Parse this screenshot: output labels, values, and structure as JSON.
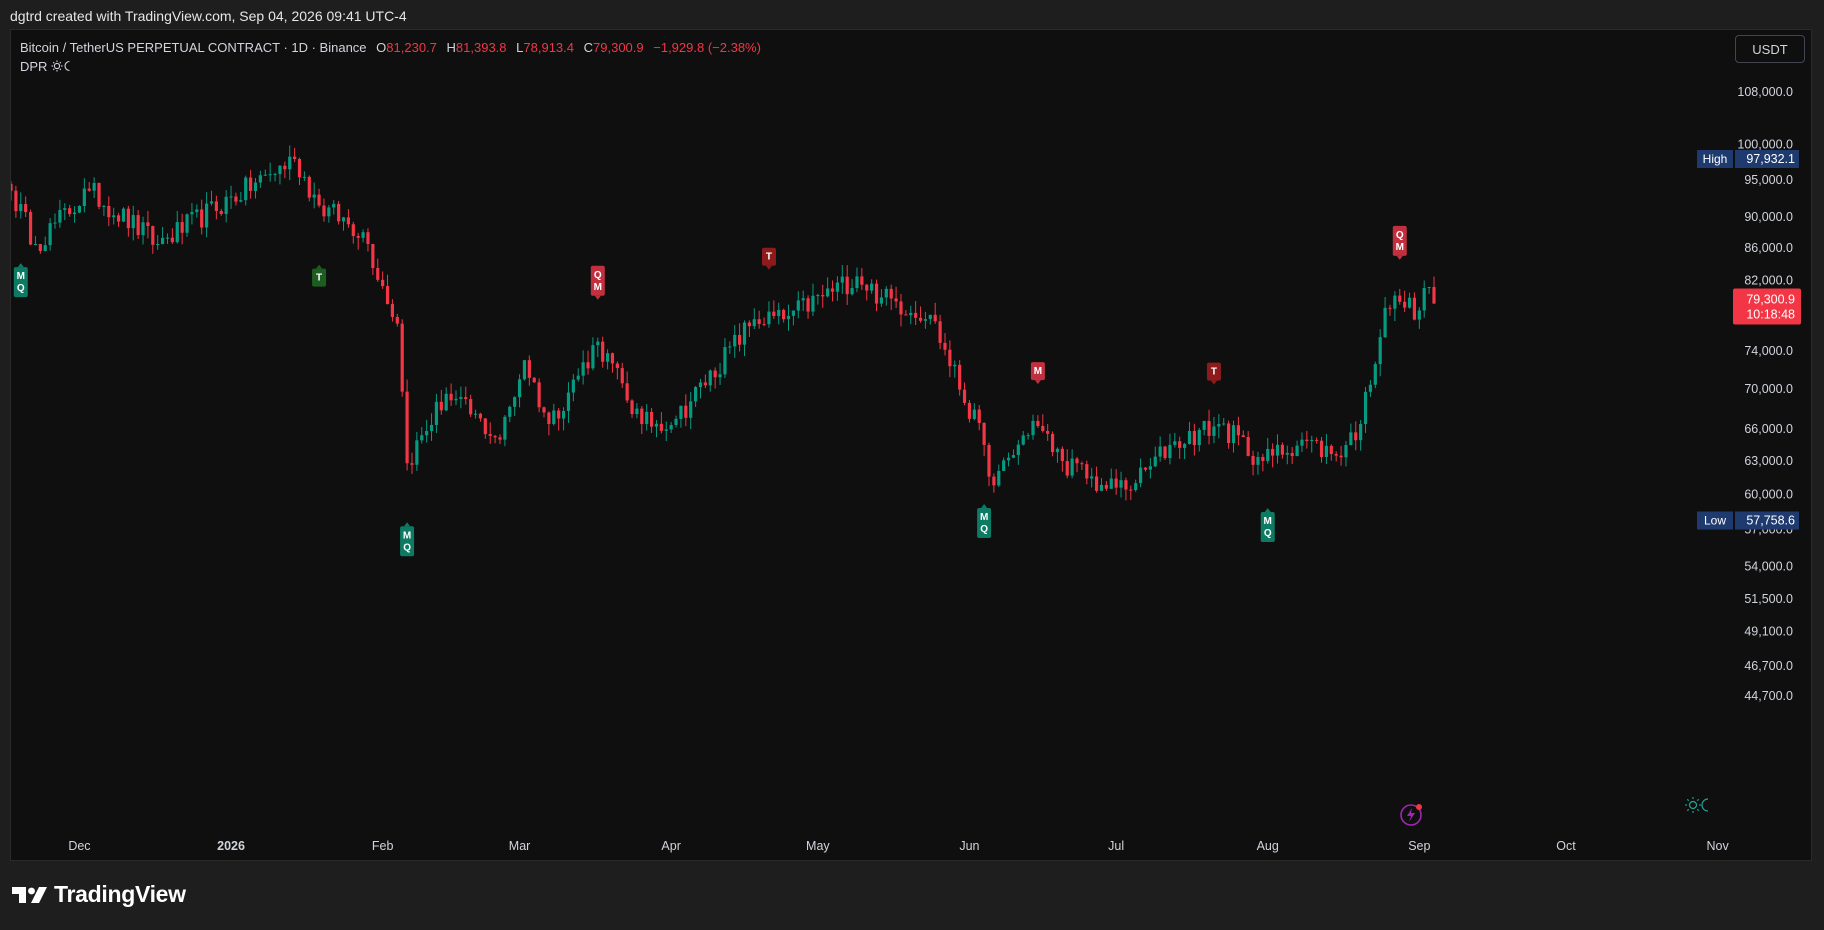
{
  "snapshot_header": "dgtrd created with TradingView.com, Sep 04, 2026 09:41 UTC-4",
  "legend": {
    "symbol": "Bitcoin / TetherUS PERPETUAL CONTRACT · 1D · Binance",
    "open_label": "O",
    "open": "81,230.7",
    "high_label": "H",
    "high": "81,393.8",
    "low_label": "L",
    "low": "78,913.4",
    "close_label": "C",
    "close": "79,300.9",
    "change": "−1,929.8 (−2.38%)"
  },
  "indicator": {
    "name": "DPR",
    "icon": "sun-moon-icon"
  },
  "currency_button": "USDT",
  "footer_brand": "TradingView",
  "colors": {
    "up": "#089981",
    "down": "#f23645",
    "background": "#0f0f0f",
    "axis_text": "#d1d4dc",
    "marker_up": "#0d7a63",
    "marker_down": "#c2303f",
    "marker_dark_green": "#1b5e20",
    "marker_dark_red": "#8e1b1b",
    "badge_blue": "#1e3a6e"
  },
  "price_axis": {
    "ticks": [
      "108,000.0",
      "100,000.0",
      "95,000.0",
      "90,000.0",
      "86,000.0",
      "82,000.0",
      "74,000.0",
      "70,000.0",
      "66,000.0",
      "63,000.0",
      "60,000.0",
      "57,000.0",
      "54,000.0",
      "51,500.0",
      "49,100.0",
      "46,700.0",
      "44,700.0"
    ],
    "high_label": "High",
    "high_value": "97,932.1",
    "low_label": "Low",
    "low_value": "57,758.6",
    "last_price": "79,300.9",
    "countdown": "10:18:48"
  },
  "time_axis": {
    "labels": [
      "Dec",
      "2026",
      "Feb",
      "Mar",
      "Apr",
      "May",
      "Jun",
      "Jul",
      "Aug",
      "Sep",
      "Oct",
      "Nov"
    ]
  },
  "chart_data": {
    "type": "candlestick",
    "symbol": "BTCUSDT.P",
    "interval": "1D",
    "y_scale": "log",
    "ylim": [
      44700,
      108000
    ],
    "xlim": [
      "2025-11-17",
      "2026-11-08"
    ],
    "first_candle_date": "2025-11-17",
    "key_prices": [
      [
        "2025-11-17",
        93500
      ],
      [
        "2025-11-22",
        86500
      ],
      [
        "2025-12-03",
        93500
      ],
      [
        "2025-12-17",
        86500
      ],
      [
        "2026-01-14",
        97932
      ],
      [
        "2026-01-19",
        91500
      ],
      [
        "2026-01-28",
        88000
      ],
      [
        "2026-02-04",
        77000
      ],
      [
        "2026-02-06",
        62800
      ],
      [
        "2026-02-14",
        69500
      ],
      [
        "2026-02-25",
        65000
      ],
      [
        "2026-03-02",
        73000
      ],
      [
        "2026-03-07",
        66500
      ],
      [
        "2026-03-17",
        75000
      ],
      [
        "2026-03-26",
        66500
      ],
      [
        "2026-04-02",
        67000
      ],
      [
        "2026-04-18",
        77500
      ],
      [
        "2026-04-24",
        77500
      ],
      [
        "2026-05-09",
        82500
      ],
      [
        "2026-05-14",
        80000
      ],
      [
        "2026-05-24",
        78000
      ],
      [
        "2026-06-04",
        64500
      ],
      [
        "2026-06-06",
        60800
      ],
      [
        "2026-06-14",
        66800
      ],
      [
        "2026-06-20",
        63000
      ],
      [
        "2026-06-29",
        60500
      ],
      [
        "2026-07-05",
        61000
      ],
      [
        "2026-07-12",
        64500
      ],
      [
        "2026-07-22",
        66500
      ],
      [
        "2026-07-31",
        63000
      ],
      [
        "2026-08-08",
        65000
      ],
      [
        "2026-08-15",
        63500
      ],
      [
        "2026-08-20",
        66500
      ],
      [
        "2026-08-25",
        78800
      ],
      [
        "2026-08-28",
        79500
      ],
      [
        "2026-09-01",
        78500
      ],
      [
        "2026-09-03",
        81230
      ],
      [
        "2026-09-04",
        79301
      ]
    ],
    "markers": [
      {
        "date": "2025-11-19",
        "text": "MQ",
        "side": "up"
      },
      {
        "date": "2026-01-19",
        "text": "T",
        "side": "up_dark"
      },
      {
        "date": "2026-02-06",
        "text": "MQ",
        "side": "up"
      },
      {
        "date": "2026-03-17",
        "text": "QM",
        "side": "down"
      },
      {
        "date": "2026-04-21",
        "text": "T",
        "side": "down_dark"
      },
      {
        "date": "2026-06-04",
        "text": "MQ",
        "side": "up"
      },
      {
        "date": "2026-06-15",
        "text": "M",
        "side": "down"
      },
      {
        "date": "2026-07-21",
        "text": "T",
        "side": "down_dark"
      },
      {
        "date": "2026-08-01",
        "text": "MQ",
        "side": "up"
      },
      {
        "date": "2026-08-28",
        "text": "QM",
        "side": "down"
      }
    ],
    "high": 97932.1,
    "low": 57758.6,
    "last": 79300.9
  }
}
